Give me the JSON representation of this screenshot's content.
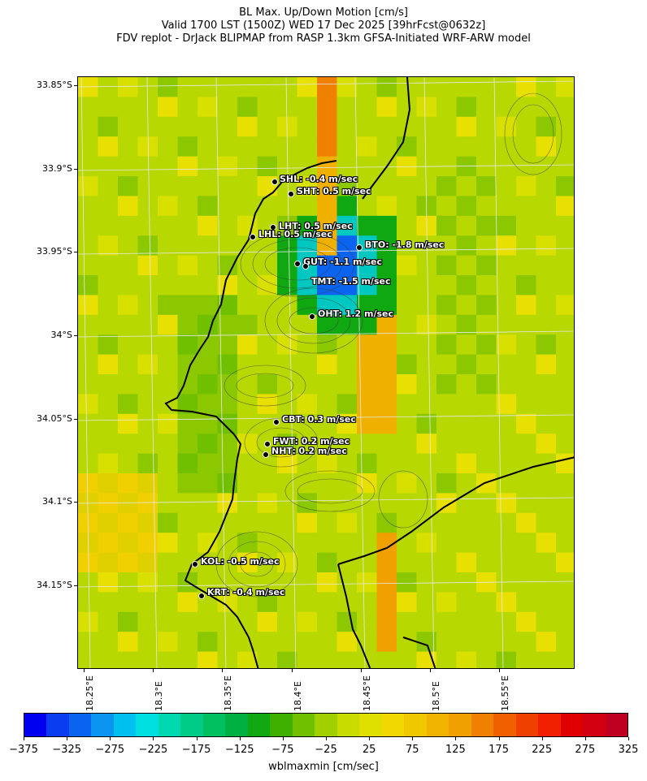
{
  "title": {
    "line1": "BL Max. Up/Down Motion [cm/s]",
    "line2": "Valid 1700 LST (1500Z) WED 17 Dec 2025 [39hrFcst@0632z]",
    "line3": "FDV replot - DrJack BLIPMAP from RASP 1.3km GFSA-Initiated WRF-ARW model"
  },
  "map": {
    "lat_labels": [
      "33.85°S",
      "33.9°S",
      "33.95°S",
      "34°S",
      "34.05°S",
      "34.1°S",
      "34.15°S"
    ],
    "lon_labels": [
      "18.25°E",
      "18.3°E",
      "18.35°E",
      "18.4°E",
      "18.45°E",
      "18.5°E",
      "18.55°E"
    ],
    "stations": [
      {
        "id": "SHL",
        "label": "SHL: -0.4 m/sec"
      },
      {
        "id": "SHT",
        "label": "SHT: 0.5 m/sec"
      },
      {
        "id": "LHT",
        "label": "LHT: 0.5 m/sec"
      },
      {
        "id": "LHL",
        "label": "LHL: 0.5 m/sec"
      },
      {
        "id": "BTO",
        "label": "BTO: -1.8 m/sec"
      },
      {
        "id": "GUT",
        "label": "GUT: -1.1 m/sec"
      },
      {
        "id": "TMT",
        "label": "TMT: -1.5 m/sec"
      },
      {
        "id": "OHT",
        "label": "OHT: 1.2 m/sec"
      },
      {
        "id": "CBT",
        "label": "CBT: 0.3 m/sec"
      },
      {
        "id": "FWT",
        "label": "FWT: 0.2 m/sec"
      },
      {
        "id": "NHT",
        "label": "NHT: 0.2 m/sec"
      },
      {
        "id": "KOL",
        "label": "KOL: -0.5 m/sec"
      },
      {
        "id": "KRT",
        "label": "KRT: -0.4 m/sec"
      }
    ]
  },
  "colorbar": {
    "title": "wblmaxmin [cm/sec]",
    "tick_labels": [
      "−375",
      "−325",
      "−275",
      "−225",
      "−175",
      "−125",
      "−75",
      "−25",
      "25",
      "75",
      "125",
      "175",
      "225",
      "275",
      "325"
    ],
    "colors": [
      "#0000f0",
      "#0a3cf0",
      "#0a64f0",
      "#0a96f0",
      "#00c0f0",
      "#00e0e0",
      "#00d8b0",
      "#00cc88",
      "#00c060",
      "#00b040",
      "#10a810",
      "#40b000",
      "#70c000",
      "#a0d000",
      "#c8dc00",
      "#e0e000",
      "#f0d800",
      "#f0c800",
      "#f0b400",
      "#f0a000",
      "#f08000",
      "#f06000",
      "#f04000",
      "#f02000",
      "#e00000",
      "#d00010",
      "#c00020"
    ]
  }
}
